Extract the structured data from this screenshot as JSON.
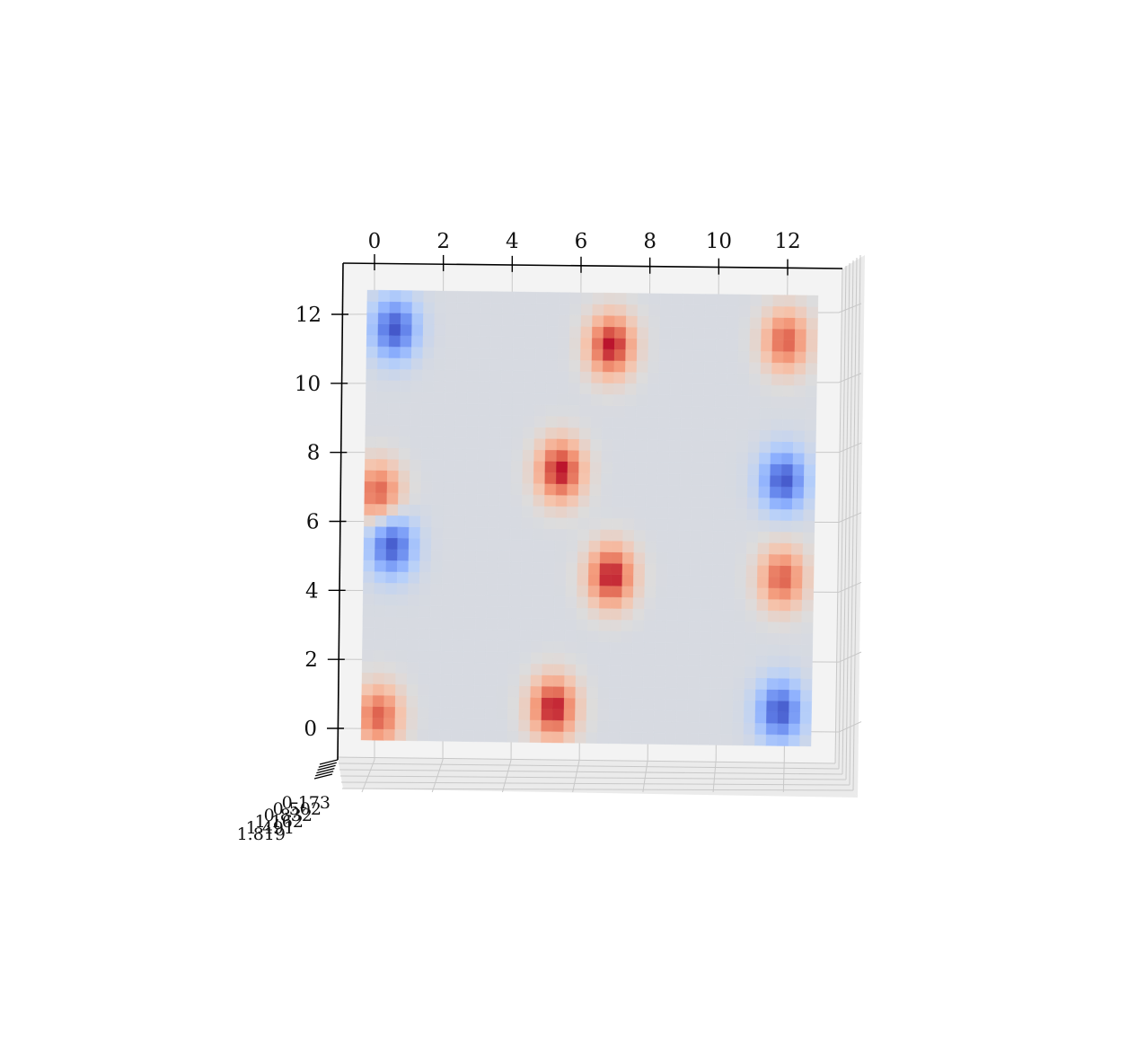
{
  "chart_data": {
    "type": "heatmap",
    "view": "3d surface seen from above",
    "colormap": "coolwarm",
    "colors": {
      "low": "#3b4cc0",
      "mid": "#dddcdc",
      "high": "#b40426",
      "pane": "#f2f2f2",
      "grid": "#c8c8c8",
      "axis": "#000000"
    },
    "xlim": [
      0,
      12.9
    ],
    "ylim": [
      0,
      12.9
    ],
    "x_ticks": [
      0,
      2,
      4,
      6,
      8,
      10,
      12
    ],
    "y_ticks": [
      0,
      2,
      4,
      6,
      8,
      10,
      12
    ],
    "x_tick_labels": [
      "0",
      "2",
      "4",
      "6",
      "8",
      "10",
      "12"
    ],
    "y_tick_labels": [
      "0",
      "2",
      "4",
      "6",
      "8",
      "10",
      "12"
    ],
    "z_tick_labels": [
      "0.173",
      "0.502",
      "0.832",
      "1.162",
      "1.491",
      "1.819"
    ],
    "grid": true,
    "grid_resolution": [
      40,
      40
    ],
    "surface": {
      "formula": "z = sin(x) * cos(y) * sin(x*y/6) * 1.6 (approximate reconstruction)",
      "peaks": [
        {
          "x": 7.0,
          "y": 11.4,
          "z": 1.8
        },
        {
          "x": 5.6,
          "y": 7.8,
          "z": 1.8
        },
        {
          "x": 7.1,
          "y": 4.8,
          "z": 1.8
        },
        {
          "x": 5.5,
          "y": 1.0,
          "z": 1.8
        },
        {
          "x": 12.0,
          "y": 11.6,
          "z": 1.4
        },
        {
          "x": 0.4,
          "y": 7.1,
          "z": 1.4
        },
        {
          "x": 12.0,
          "y": 4.8,
          "z": 1.4
        },
        {
          "x": 0.5,
          "y": 0.7,
          "z": 1.4
        }
      ],
      "troughs": [
        {
          "x": 0.8,
          "y": 11.8,
          "z": -1.6
        },
        {
          "x": 12.0,
          "y": 7.6,
          "z": -1.6
        },
        {
          "x": 0.8,
          "y": 5.6,
          "z": -1.6
        },
        {
          "x": 12.0,
          "y": 1.0,
          "z": -1.6
        }
      ]
    }
  }
}
